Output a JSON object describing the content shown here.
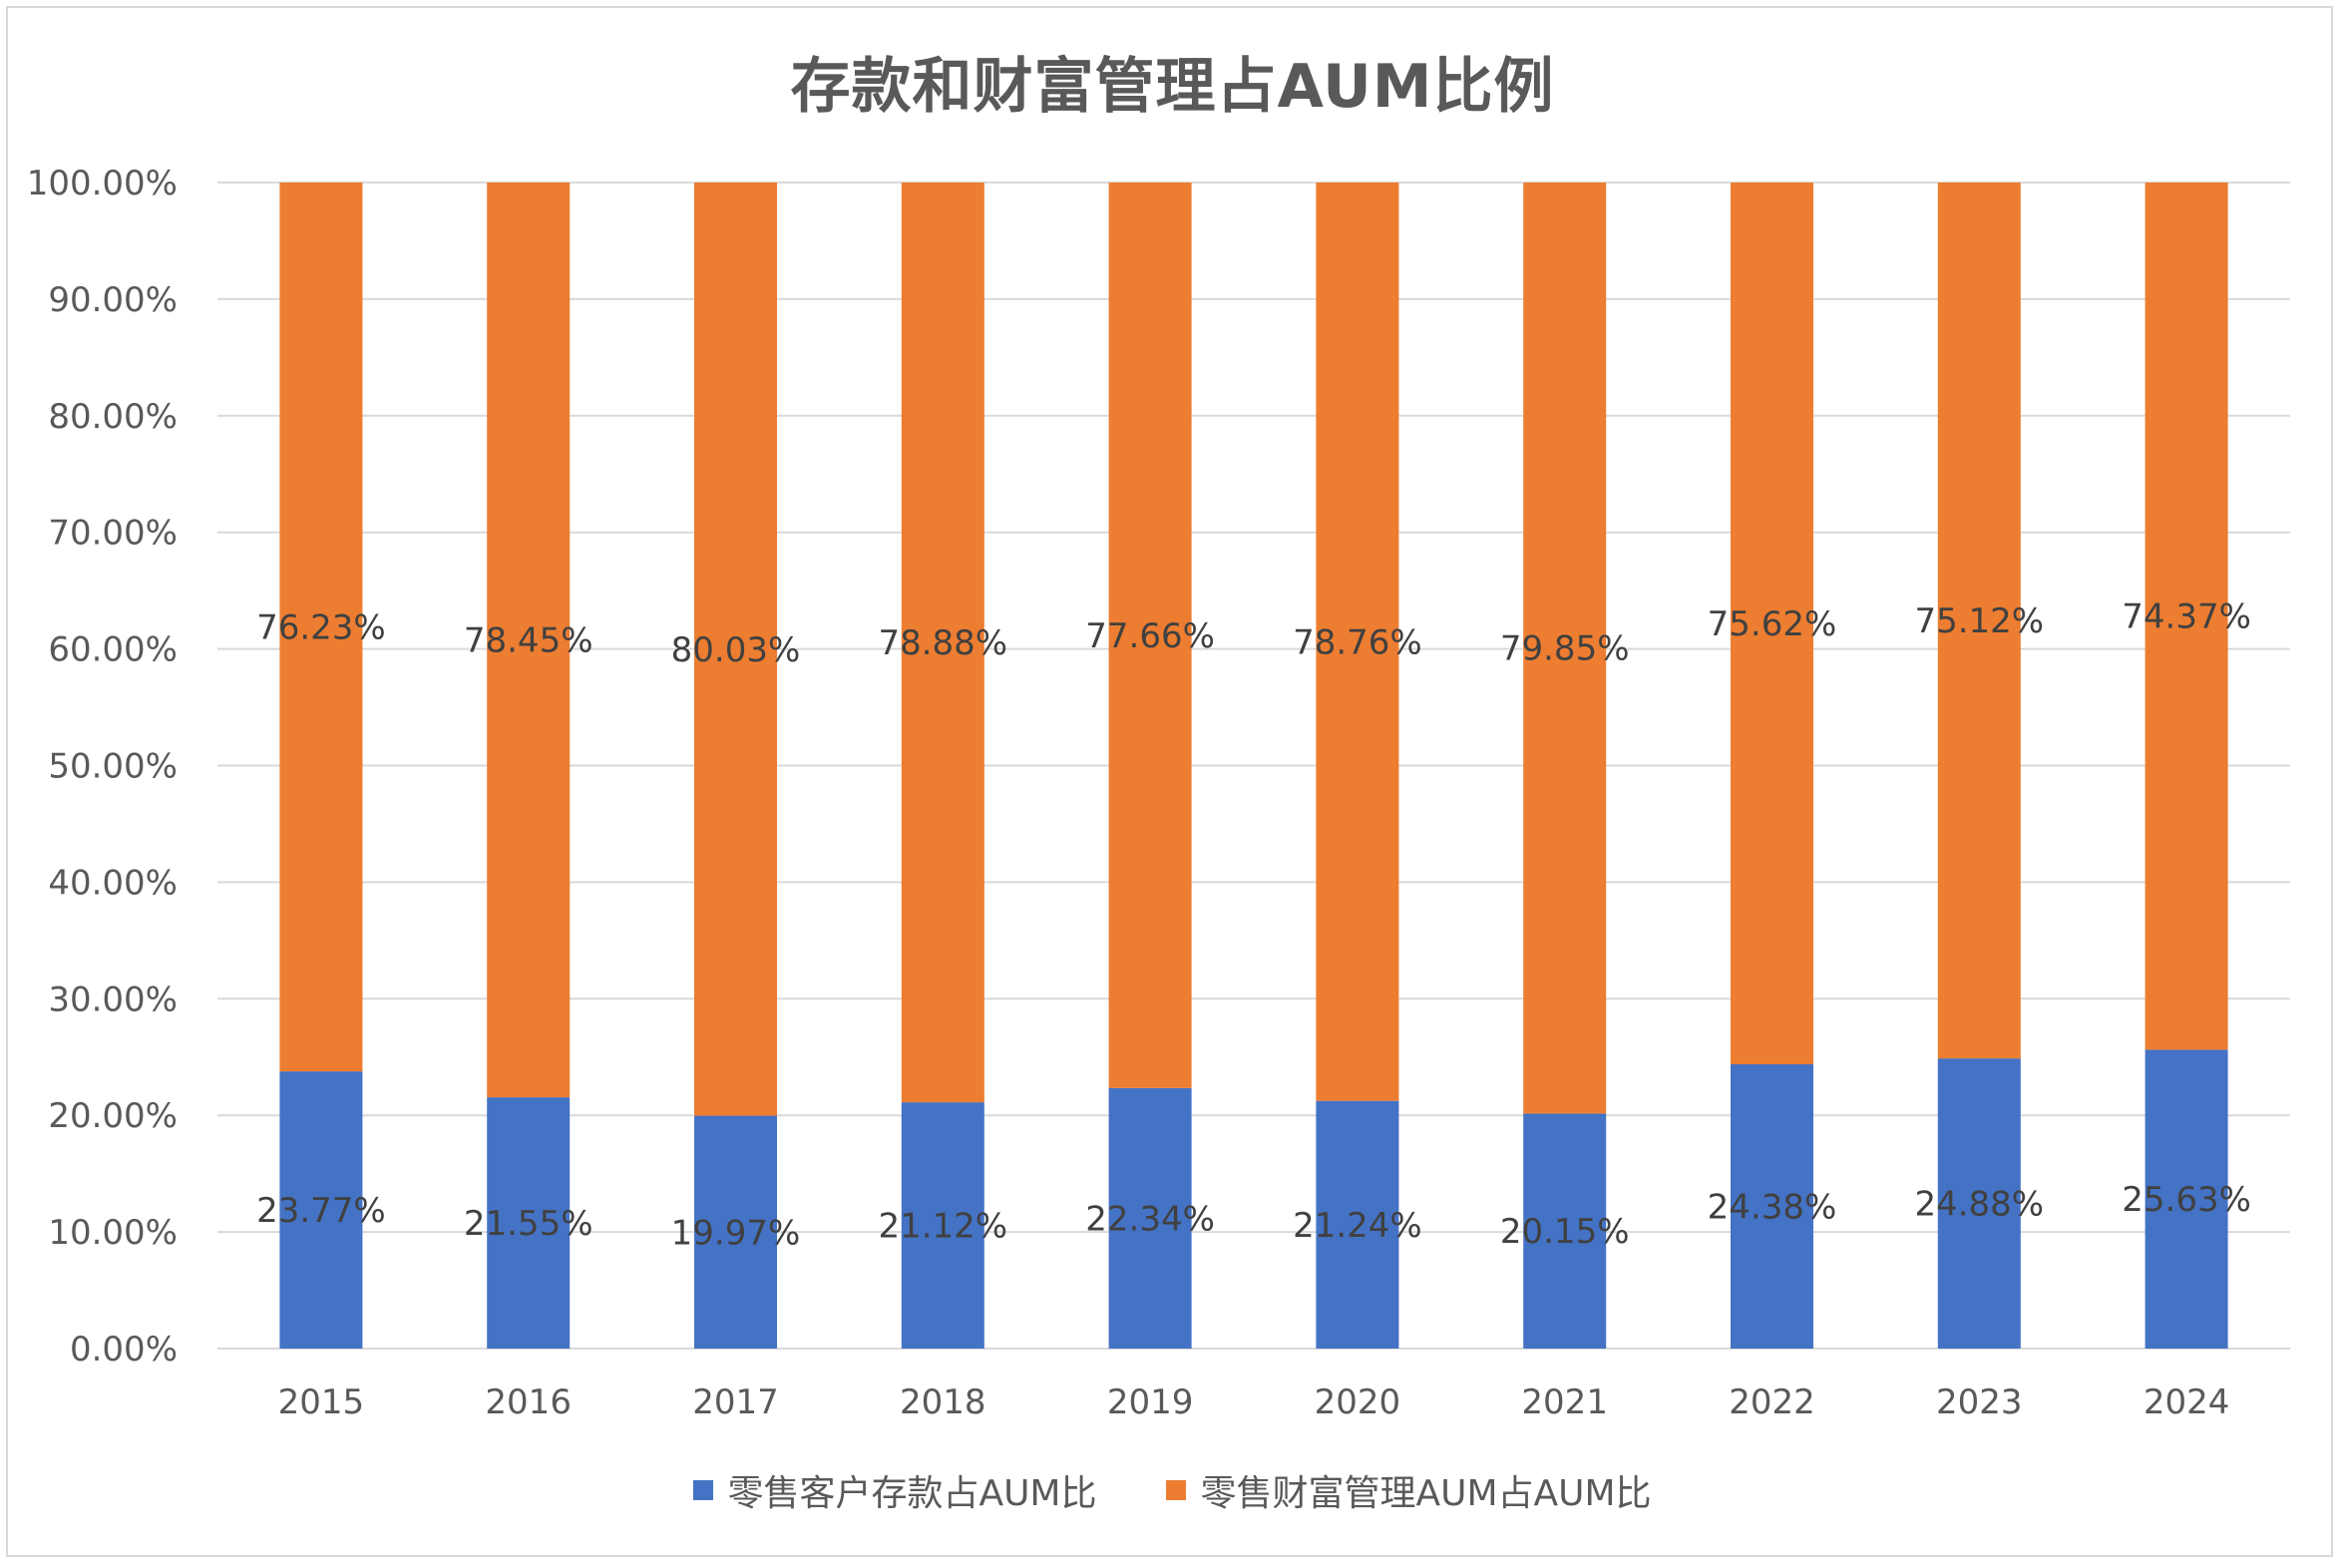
{
  "chart_data": {
    "type": "bar",
    "stacked": true,
    "title": "存款和财富管理占AUM比例",
    "categories": [
      "2015",
      "2016",
      "2017",
      "2018",
      "2019",
      "2020",
      "2021",
      "2022",
      "2023",
      "2024"
    ],
    "series": [
      {
        "name": "零售客户存款占AUM比",
        "color": "#4472c4",
        "values": [
          23.77,
          21.55,
          19.97,
          21.12,
          22.34,
          21.24,
          20.15,
          24.38,
          24.88,
          25.63
        ],
        "labels": [
          "23.77%",
          "21.55%",
          "19.97%",
          "21.12%",
          "22.34%",
          "21.24%",
          "20.15%",
          "24.38%",
          "24.88%",
          "25.63%"
        ]
      },
      {
        "name": "零售财富管理AUM占AUM比",
        "color": "#ed7d31",
        "values": [
          76.23,
          78.45,
          80.03,
          78.88,
          77.66,
          78.76,
          79.85,
          75.62,
          75.12,
          74.37
        ],
        "labels": [
          "76.23%",
          "78.45%",
          "80.03%",
          "78.88%",
          "77.66%",
          "78.76%",
          "79.85%",
          "75.62%",
          "75.12%",
          "74.37%"
        ]
      }
    ],
    "yticks": [
      "0.00%",
      "10.00%",
      "20.00%",
      "30.00%",
      "40.00%",
      "50.00%",
      "60.00%",
      "70.00%",
      "80.00%",
      "90.00%",
      "100.00%"
    ],
    "ylim": [
      0,
      100
    ],
    "xlabel": "",
    "ylabel": "",
    "grid": true,
    "legend_position": "bottom",
    "gridline_color": "#d9d9d9",
    "label_color": "#595959"
  }
}
